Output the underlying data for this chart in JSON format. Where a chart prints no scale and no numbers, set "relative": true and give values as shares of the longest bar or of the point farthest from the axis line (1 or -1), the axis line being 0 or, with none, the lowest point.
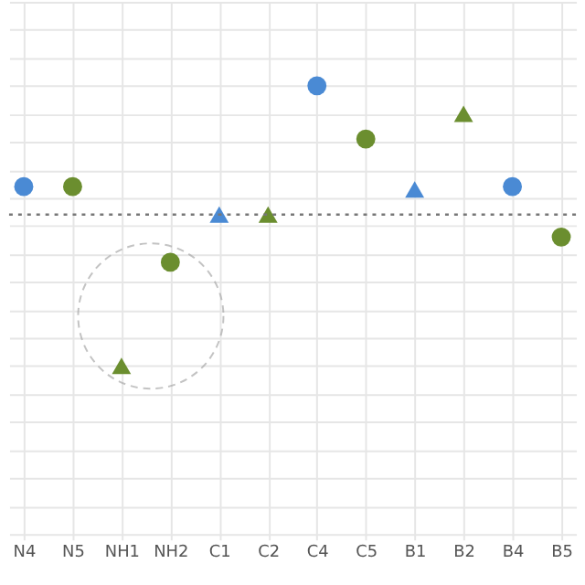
{
  "chart_data": {
    "type": "scatter",
    "relative": true,
    "grid": true,
    "categories": [
      "N4",
      "N5",
      "NH1",
      "NH2",
      "C1",
      "C2",
      "C4",
      "C5",
      "B1",
      "B2",
      "B4",
      "B5"
    ],
    "series": [
      {
        "color": "#4a8ad4",
        "marker": "circle",
        "values": [
          0.64,
          null,
          null,
          null,
          null,
          null,
          1,
          null,
          null,
          null,
          0.64,
          null
        ]
      },
      {
        "color": "#6b8e2f",
        "marker": "circle",
        "values": [
          null,
          0.64,
          null,
          0.37,
          null,
          null,
          null,
          0.81,
          null,
          null,
          null,
          0.46
        ]
      },
      {
        "color": "#4a8ad4",
        "marker": "triangle",
        "values": [
          null,
          null,
          null,
          null,
          0.54,
          null,
          null,
          null,
          0.63,
          null,
          null,
          null
        ]
      },
      {
        "color": "#6b8e2f",
        "marker": "triangle",
        "values": [
          null,
          null,
          0,
          null,
          null,
          0.54,
          null,
          null,
          null,
          0.9,
          null,
          null
        ]
      }
    ],
    "ref_lines": [
      {
        "axis": "y",
        "value": 0.54,
        "color": "#777777",
        "line_style": "dotted"
      }
    ]
  }
}
